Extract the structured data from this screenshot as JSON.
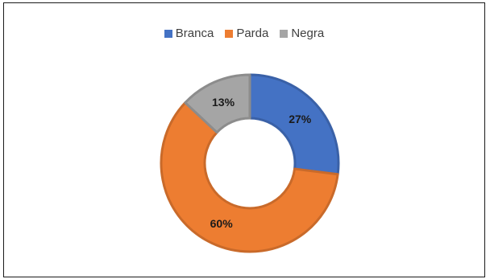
{
  "chart_data": {
    "type": "pie",
    "variant": "donut",
    "categories": [
      "Branca",
      "Parda",
      "Negra"
    ],
    "values": [
      27,
      60,
      13
    ],
    "labels": [
      "27%",
      "60%",
      "13%"
    ],
    "colors": [
      "#4472c4",
      "#ed7d31",
      "#a5a5a5"
    ],
    "legend_position": "top",
    "title": ""
  }
}
